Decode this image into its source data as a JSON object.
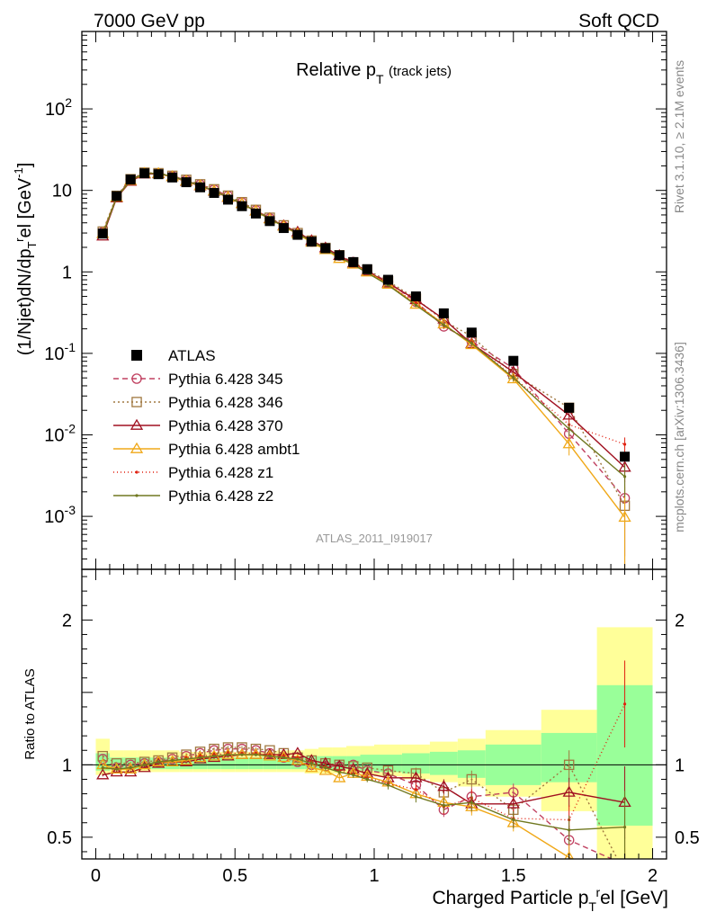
{
  "header": {
    "left": "7000 GeV pp",
    "right": "Soft QCD",
    "rivet": "Rivet 3.1.10, ≥ 2.1M events",
    "mcplots": "mcplots.cern.ch [arXiv:1306.3436]",
    "analysis": "ATLAS_2011_I919017"
  },
  "chart_data": {
    "type": "line",
    "title": "Relative p",
    "title_sub": "T",
    "title_extra": "(track jets)",
    "ylabel_main": "(1/Njet)dN/dp",
    "ylabel_main_sub": "T",
    "ylabel_main_sup": "r",
    "ylabel_main_rest": "el [GeV",
    "ylabel_main_unit_sup": "-1",
    "ylabel_main_close": "]",
    "ylabel_ratio": "Ratio to ATLAS",
    "xlabel": "Charged Particle p",
    "xlabel_sub": "T",
    "xlabel_sup": "r",
    "xlabel_rest": "el [GeV]",
    "xlim": [
      -0.05,
      2.05
    ],
    "main_ylim_log": [
      -3.65,
      2.95
    ],
    "ratio_ylim": [
      0.35,
      2.35
    ],
    "x_ticks": [
      "0",
      "0.5",
      "1",
      "1.5",
      "2"
    ],
    "main_y_ticks": [
      {
        "value": 0.001,
        "base": "10",
        "exp": "-3"
      },
      {
        "value": 0.01,
        "base": "10",
        "exp": "-2"
      },
      {
        "value": 0.1,
        "base": "10",
        "exp": "-1"
      },
      {
        "value": 1,
        "base": "1",
        "exp": ""
      },
      {
        "value": 10,
        "base": "10",
        "exp": ""
      },
      {
        "value": 100,
        "base": "10",
        "exp": "2"
      }
    ],
    "ratio_y_ticks": [
      "0.5",
      "1",
      "2"
    ],
    "x": [
      0.025,
      0.075,
      0.125,
      0.175,
      0.225,
      0.275,
      0.325,
      0.375,
      0.425,
      0.475,
      0.525,
      0.575,
      0.625,
      0.675,
      0.725,
      0.775,
      0.825,
      0.875,
      0.925,
      0.975,
      1.05,
      1.15,
      1.25,
      1.35,
      1.5,
      1.7,
      1.9
    ],
    "bins": [
      0.0,
      0.05,
      0.1,
      0.15,
      0.2,
      0.25,
      0.3,
      0.35,
      0.4,
      0.45,
      0.5,
      0.55,
      0.6,
      0.65,
      0.7,
      0.75,
      0.8,
      0.85,
      0.9,
      0.95,
      1.0,
      1.1,
      1.2,
      1.3,
      1.4,
      1.6,
      1.8,
      2.0
    ],
    "data": {
      "name": "ATLAS",
      "values": [
        2.95,
        8.5,
        13.6,
        16.2,
        15.8,
        14.4,
        12.6,
        10.9,
        9.3,
        7.7,
        6.4,
        5.2,
        4.2,
        3.45,
        2.85,
        2.35,
        1.95,
        1.6,
        1.32,
        1.08,
        0.8,
        0.5,
        0.31,
        0.18,
        0.081,
        0.0215,
        0.0054
      ]
    },
    "band_outer": [
      1.18,
      1.1,
      1.1,
      1.1,
      1.1,
      1.1,
      1.09,
      1.09,
      1.09,
      1.09,
      1.09,
      1.09,
      1.09,
      1.1,
      1.1,
      1.11,
      1.12,
      1.12,
      1.13,
      1.13,
      1.14,
      1.14,
      1.16,
      1.18,
      1.24,
      1.38,
      1.95
    ],
    "band_outer_low": [
      0.93,
      0.95,
      0.95,
      0.95,
      0.95,
      0.95,
      0.95,
      0.95,
      0.95,
      0.95,
      0.95,
      0.95,
      0.95,
      0.95,
      0.95,
      0.94,
      0.94,
      0.94,
      0.94,
      0.93,
      0.92,
      0.9,
      0.88,
      0.85,
      0.78,
      0.68,
      0.35
    ],
    "band_inner": [
      1.08,
      1.05,
      1.05,
      1.05,
      1.05,
      1.05,
      1.05,
      1.05,
      1.05,
      1.05,
      1.05,
      1.05,
      1.05,
      1.05,
      1.05,
      1.06,
      1.06,
      1.06,
      1.06,
      1.07,
      1.07,
      1.08,
      1.09,
      1.1,
      1.14,
      1.22,
      1.55
    ],
    "band_inner_low": [
      0.96,
      0.97,
      0.97,
      0.97,
      0.97,
      0.97,
      0.97,
      0.97,
      0.97,
      0.97,
      0.97,
      0.97,
      0.97,
      0.97,
      0.97,
      0.97,
      0.97,
      0.97,
      0.97,
      0.96,
      0.95,
      0.94,
      0.93,
      0.91,
      0.86,
      0.88,
      0.58
    ],
    "series": [
      {
        "name": "Pythia 6.428 345",
        "color": "#c04060",
        "dash": "6,4",
        "marker": "circle",
        "ratio": [
          1.04,
          0.98,
          1.0,
          1.01,
          1.02,
          1.04,
          1.06,
          1.08,
          1.1,
          1.11,
          1.11,
          1.1,
          1.08,
          1.05,
          1.02,
          1.0,
          0.99,
          0.99,
          1.0,
          0.96,
          0.94,
          0.86,
          0.69,
          0.78,
          0.81,
          0.48,
          0.31
        ],
        "err": [
          0.01,
          0.01,
          0.01,
          0.01,
          0.01,
          0.01,
          0.01,
          0.01,
          0.01,
          0.01,
          0.01,
          0.01,
          0.01,
          0.01,
          0.01,
          0.02,
          0.02,
          0.02,
          0.02,
          0.02,
          0.03,
          0.04,
          0.05,
          0.06,
          0.06,
          0.1,
          0.25
        ]
      },
      {
        "name": "Pythia 6.428 346",
        "color": "#a07840",
        "dash": "2,3",
        "marker": "square",
        "ratio": [
          1.06,
          1.01,
          1.01,
          1.02,
          1.03,
          1.05,
          1.07,
          1.09,
          1.11,
          1.12,
          1.12,
          1.11,
          1.1,
          1.08,
          1.05,
          1.03,
          1.01,
          1.0,
          0.99,
          0.98,
          0.96,
          0.94,
          0.81,
          0.9,
          0.69,
          1.0,
          0.25
        ],
        "err": [
          0.01,
          0.01,
          0.01,
          0.01,
          0.01,
          0.01,
          0.01,
          0.01,
          0.01,
          0.01,
          0.01,
          0.01,
          0.01,
          0.01,
          0.01,
          0.02,
          0.02,
          0.02,
          0.02,
          0.02,
          0.03,
          0.04,
          0.05,
          0.06,
          0.06,
          0.1,
          0.25
        ]
      },
      {
        "name": "Pythia 6.428 370",
        "color": "#a01020",
        "dash": "",
        "marker": "triangle",
        "ratio": [
          0.93,
          0.95,
          0.95,
          0.98,
          1.01,
          1.02,
          1.02,
          1.04,
          1.05,
          1.06,
          1.07,
          1.07,
          1.07,
          1.07,
          1.08,
          1.03,
          1.01,
          0.99,
          0.97,
          0.94,
          0.91,
          0.91,
          0.85,
          0.73,
          0.73,
          0.81,
          0.74
        ],
        "err": [
          0.01,
          0.01,
          0.01,
          0.01,
          0.01,
          0.01,
          0.01,
          0.01,
          0.01,
          0.01,
          0.01,
          0.01,
          0.01,
          0.01,
          0.01,
          0.02,
          0.02,
          0.02,
          0.02,
          0.02,
          0.03,
          0.04,
          0.05,
          0.06,
          0.06,
          0.1,
          0.25
        ]
      },
      {
        "name": "Pythia 6.428 ambt1",
        "color": "#f0a818",
        "dash": "",
        "marker": "triangle",
        "ratio": [
          1.0,
          0.97,
          0.97,
          1.0,
          1.02,
          1.02,
          1.03,
          1.05,
          1.06,
          1.07,
          1.07,
          1.07,
          1.06,
          1.05,
          1.03,
          0.98,
          0.96,
          0.91,
          0.94,
          0.92,
          0.88,
          0.8,
          0.74,
          0.71,
          0.6,
          0.36,
          0.18
        ],
        "err": [
          0.01,
          0.01,
          0.01,
          0.01,
          0.01,
          0.01,
          0.01,
          0.01,
          0.01,
          0.01,
          0.01,
          0.01,
          0.01,
          0.01,
          0.01,
          0.02,
          0.02,
          0.02,
          0.02,
          0.02,
          0.03,
          0.04,
          0.05,
          0.06,
          0.06,
          0.1,
          0.25
        ]
      },
      {
        "name": "Pythia 6.428 z1",
        "color": "#e02010",
        "dash": "1,3",
        "marker": "dot",
        "ratio": [
          0.98,
          0.97,
          0.98,
          1.0,
          1.02,
          1.03,
          1.05,
          1.06,
          1.07,
          1.08,
          1.08,
          1.08,
          1.07,
          1.06,
          1.05,
          1.02,
          0.99,
          0.96,
          0.94,
          0.91,
          0.87,
          0.83,
          0.71,
          0.77,
          0.63,
          0.62,
          1.42
        ],
        "err": [
          0.01,
          0.01,
          0.01,
          0.01,
          0.01,
          0.01,
          0.01,
          0.01,
          0.01,
          0.01,
          0.01,
          0.01,
          0.01,
          0.01,
          0.01,
          0.02,
          0.02,
          0.02,
          0.02,
          0.02,
          0.03,
          0.04,
          0.05,
          0.06,
          0.06,
          0.1,
          0.3
        ]
      },
      {
        "name": "Pythia 6.428 z2",
        "color": "#707820",
        "dash": "",
        "marker": "dot",
        "ratio": [
          0.98,
          0.97,
          0.98,
          1.0,
          1.02,
          1.03,
          1.04,
          1.05,
          1.06,
          1.07,
          1.07,
          1.07,
          1.06,
          1.05,
          1.04,
          1.01,
          0.98,
          0.95,
          0.93,
          0.9,
          0.86,
          0.78,
          0.72,
          0.74,
          0.62,
          0.55,
          0.57
        ],
        "err": [
          0.01,
          0.01,
          0.01,
          0.01,
          0.01,
          0.01,
          0.01,
          0.01,
          0.01,
          0.01,
          0.01,
          0.01,
          0.01,
          0.01,
          0.01,
          0.02,
          0.02,
          0.02,
          0.02,
          0.02,
          0.03,
          0.04,
          0.05,
          0.06,
          0.06,
          0.1,
          0.25
        ]
      }
    ],
    "colors": {
      "band_outer": "#ffff99",
      "band_inner": "#99ff99",
      "data_marker": "#000000"
    },
    "legend_position": "bottom-left"
  }
}
